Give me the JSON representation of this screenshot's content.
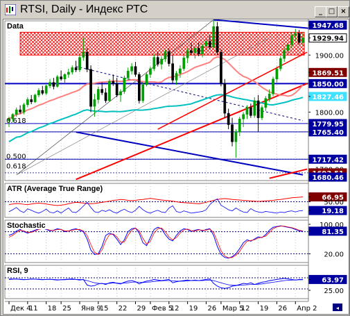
{
  "window": {
    "title": "RTSI, Daily - Индекс РТС",
    "buttons": {
      "minimize": "_",
      "maximize": "□",
      "close": "×"
    }
  },
  "colors": {
    "up_candle": "#00a000",
    "down_candle": "#000000",
    "resistance_zone": "#ff0000",
    "channel_blue": "#0000c0",
    "trend_red": "#ff0000",
    "ma_slow": "#00c0c0",
    "ma_fast": "#ff8080",
    "indicator_blue": "#0000ff",
    "indicator_red": "#ff0000",
    "tag_blue": "#0000a0",
    "tag_red": "#800000"
  },
  "chart_data": [
    {
      "type": "candlestick",
      "title": "Data",
      "ylim": [
        1680,
        1960
      ],
      "y_ticks": [
        1700.0,
        1800.0,
        1900.0
      ],
      "price_tags": [
        {
          "value": "1947.68",
          "color": "blue"
        },
        {
          "value": "1929.94",
          "color": "white"
        },
        {
          "value": "1900.00",
          "color": "none"
        },
        {
          "value": "1869.51",
          "color": "red"
        },
        {
          "value": "1850.00",
          "color": "blue"
        },
        {
          "value": "1827.46",
          "color": "cyan"
        },
        {
          "value": "1800.00",
          "color": "none"
        },
        {
          "value": "1779.95",
          "color": "blue"
        },
        {
          "value": "1765.40",
          "color": "blue"
        },
        {
          "value": "1717.42",
          "color": "blue"
        },
        {
          "value": "1700.00",
          "color": "none"
        },
        {
          "value": "1693.51",
          "color": "red"
        },
        {
          "value": "1680.46",
          "color": "blue"
        }
      ],
      "fib_labels": [
        "0.618",
        "0.500",
        "0.618"
      ],
      "horizontal_levels": [
        1850.0,
        1779.95,
        1765.4,
        1717.42
      ],
      "resistance_zone": [
        1900,
        1940
      ],
      "candles": [
        [
          1785,
          1792,
          1774,
          1788
        ],
        [
          1788,
          1798,
          1783,
          1796
        ],
        [
          1796,
          1808,
          1792,
          1804
        ],
        [
          1804,
          1812,
          1797,
          1800
        ],
        [
          1800,
          1816,
          1796,
          1813
        ],
        [
          1813,
          1826,
          1809,
          1822
        ],
        [
          1822,
          1830,
          1814,
          1818
        ],
        [
          1818,
          1832,
          1816,
          1830
        ],
        [
          1830,
          1842,
          1826,
          1838
        ],
        [
          1838,
          1846,
          1830,
          1833
        ],
        [
          1833,
          1848,
          1830,
          1846
        ],
        [
          1846,
          1858,
          1842,
          1852
        ],
        [
          1852,
          1860,
          1840,
          1845
        ],
        [
          1845,
          1865,
          1843,
          1862
        ],
        [
          1862,
          1873,
          1855,
          1858
        ],
        [
          1858,
          1868,
          1850,
          1866
        ],
        [
          1866,
          1876,
          1860,
          1870
        ],
        [
          1870,
          1882,
          1866,
          1878
        ],
        [
          1878,
          1890,
          1870,
          1874
        ],
        [
          1874,
          1900,
          1870,
          1896
        ],
        [
          1896,
          1930,
          1890,
          1905
        ],
        [
          1905,
          1912,
          1870,
          1875
        ],
        [
          1875,
          1882,
          1800,
          1810
        ],
        [
          1810,
          1832,
          1792,
          1822
        ],
        [
          1822,
          1845,
          1815,
          1840
        ],
        [
          1840,
          1852,
          1830,
          1834
        ],
        [
          1834,
          1842,
          1816,
          1820
        ],
        [
          1820,
          1858,
          1818,
          1854
        ],
        [
          1854,
          1866,
          1846,
          1850
        ],
        [
          1850,
          1860,
          1826,
          1830
        ],
        [
          1830,
          1840,
          1818,
          1836
        ],
        [
          1836,
          1864,
          1832,
          1860
        ],
        [
          1860,
          1878,
          1856,
          1872
        ],
        [
          1872,
          1886,
          1866,
          1880
        ],
        [
          1880,
          1888,
          1862,
          1866
        ],
        [
          1866,
          1870,
          1815,
          1820
        ],
        [
          1820,
          1852,
          1816,
          1848
        ],
        [
          1848,
          1870,
          1845,
          1866
        ],
        [
          1866,
          1880,
          1860,
          1876
        ],
        [
          1876,
          1902,
          1872,
          1896
        ],
        [
          1896,
          1906,
          1880,
          1884
        ],
        [
          1884,
          1898,
          1875,
          1893
        ],
        [
          1893,
          1910,
          1888,
          1906
        ],
        [
          1906,
          1912,
          1880,
          1885
        ],
        [
          1885,
          1900,
          1850,
          1856
        ],
        [
          1856,
          1872,
          1848,
          1868
        ],
        [
          1868,
          1882,
          1860,
          1876
        ],
        [
          1876,
          1900,
          1872,
          1895
        ],
        [
          1895,
          1912,
          1886,
          1908
        ],
        [
          1908,
          1922,
          1900,
          1904
        ],
        [
          1904,
          1916,
          1894,
          1912
        ],
        [
          1912,
          1922,
          1898,
          1902
        ],
        [
          1902,
          1920,
          1896,
          1916
        ],
        [
          1916,
          1930,
          1908,
          1924
        ],
        [
          1924,
          1935,
          1910,
          1914
        ],
        [
          1914,
          1960,
          1912,
          1950
        ],
        [
          1950,
          1958,
          1900,
          1905
        ],
        [
          1905,
          1910,
          1845,
          1850
        ],
        [
          1850,
          1858,
          1790,
          1798
        ],
        [
          1798,
          1806,
          1770,
          1778
        ],
        [
          1778,
          1790,
          1740,
          1748
        ],
        [
          1748,
          1770,
          1720,
          1765
        ],
        [
          1765,
          1792,
          1758,
          1788
        ],
        [
          1788,
          1800,
          1774,
          1796
        ],
        [
          1796,
          1812,
          1788,
          1808
        ],
        [
          1808,
          1815,
          1790,
          1794
        ],
        [
          1794,
          1826,
          1790,
          1820
        ],
        [
          1820,
          1830,
          1766,
          1790
        ],
        [
          1790,
          1812,
          1786,
          1808
        ],
        [
          1808,
          1828,
          1802,
          1824
        ],
        [
          1824,
          1840,
          1818,
          1832
        ],
        [
          1832,
          1862,
          1828,
          1858
        ],
        [
          1858,
          1880,
          1852,
          1876
        ],
        [
          1876,
          1898,
          1872,
          1894
        ],
        [
          1894,
          1912,
          1888,
          1908
        ],
        [
          1908,
          1922,
          1900,
          1918
        ],
        [
          1918,
          1940,
          1912,
          1934
        ],
        [
          1934,
          1946,
          1924,
          1938
        ],
        [
          1938,
          1944,
          1918,
          1922
        ],
        [
          1922,
          1940,
          1916,
          1930
        ]
      ]
    },
    {
      "type": "line",
      "title": "ATR (Average True Range)",
      "ylim": [
        0,
        100
      ],
      "y_ticks": [
        50.0
      ],
      "price_tags": [
        {
          "value": "66.95",
          "color": "red"
        },
        {
          "value": "50.00",
          "color": "none"
        },
        {
          "value": "19.18",
          "color": "blue"
        }
      ],
      "series": [
        {
          "color": "red",
          "values": [
            40,
            42,
            44,
            43,
            41,
            40,
            42,
            44,
            45,
            44,
            42,
            40,
            38,
            37,
            38,
            40,
            43,
            46,
            48,
            47,
            45,
            44,
            43,
            44,
            46,
            48,
            50,
            52,
            55,
            56,
            58,
            57,
            55,
            54,
            55,
            57,
            58,
            60,
            62,
            60,
            58,
            56,
            55,
            54,
            52,
            50,
            48,
            47,
            46,
            45,
            44,
            43,
            45,
            48,
            52,
            55,
            58,
            60,
            61,
            60,
            58,
            57,
            56,
            55,
            54,
            53,
            52,
            51,
            52,
            53,
            54,
            55,
            57,
            58,
            60,
            62,
            64,
            65,
            66,
            67
          ]
        },
        {
          "color": "blue",
          "values": [
            15,
            22,
            30,
            18,
            12,
            25,
            20,
            14,
            10,
            16,
            24,
            13,
            11,
            18,
            10,
            20,
            28,
            14,
            12,
            22,
            35,
            48,
            30,
            15,
            12,
            20,
            16,
            22,
            14,
            10,
            18,
            24,
            16,
            12,
            20,
            34,
            22,
            14,
            10,
            16,
            20,
            14,
            12,
            28,
            36,
            16,
            12,
            18,
            14,
            10,
            12,
            14,
            16,
            22,
            40,
            52,
            60,
            38,
            30,
            22,
            18,
            28,
            20,
            14,
            12,
            26,
            18,
            14,
            12,
            16,
            14,
            12,
            10,
            14,
            12,
            16,
            18,
            14,
            18,
            19
          ]
        }
      ]
    },
    {
      "type": "line",
      "title": "Stochastic",
      "ylim": [
        0,
        100
      ],
      "y_ticks": [
        100.0
      ],
      "price_tags": [
        {
          "value": "100.00",
          "color": "none"
        },
        {
          "value": "81.35",
          "color": "blue"
        },
        {
          "value": "20.00",
          "color": "none"
        }
      ],
      "series": [
        {
          "color": "blue",
          "values": [
            70,
            74,
            82,
            86,
            80,
            76,
            80,
            84,
            88,
            90,
            86,
            82,
            84,
            88,
            86,
            80,
            82,
            86,
            88,
            84,
            80,
            60,
            30,
            18,
            20,
            40,
            70,
            76,
            72,
            60,
            45,
            58,
            80,
            88,
            90,
            76,
            50,
            42,
            64,
            86,
            92,
            88,
            72,
            60,
            55,
            70,
            82,
            88,
            86,
            80,
            84,
            86,
            82,
            86,
            88,
            70,
            40,
            18,
            10,
            8,
            12,
            20,
            34,
            50,
            58,
            54,
            60,
            66,
            64,
            72,
            84,
            92,
            94,
            96,
            94,
            92,
            90,
            86,
            82,
            81
          ]
        },
        {
          "color": "red",
          "values": [
            65,
            70,
            78,
            84,
            82,
            78,
            78,
            82,
            86,
            88,
            88,
            84,
            83,
            86,
            86,
            82,
            82,
            84,
            86,
            86,
            82,
            70,
            45,
            24,
            18,
            30,
            55,
            72,
            74,
            66,
            52,
            52,
            70,
            84,
            90,
            82,
            62,
            46,
            54,
            76,
            88,
            90,
            80,
            66,
            58,
            64,
            76,
            85,
            87,
            83,
            82,
            85,
            84,
            84,
            87,
            78,
            54,
            28,
            14,
            9,
            10,
            16,
            26,
            42,
            54,
            56,
            58,
            63,
            65,
            68,
            78,
            88,
            93,
            95,
            95,
            93,
            91,
            88,
            84,
            82
          ]
        }
      ]
    },
    {
      "type": "line",
      "title": "RSI, 9",
      "ylim": [
        0,
        100
      ],
      "y_ticks": [],
      "price_tags": [
        {
          "value": "63.97",
          "color": "blue"
        },
        {
          "value": "25.00",
          "color": "none"
        }
      ],
      "series": [
        {
          "color": "blue",
          "values": [
            64,
            65,
            66,
            64,
            63,
            64,
            66,
            65,
            64,
            63,
            64,
            65,
            63,
            62,
            63,
            64,
            65,
            66,
            64,
            62,
            64,
            44,
            40,
            42,
            48,
            50,
            46,
            52,
            54,
            50,
            48,
            54,
            58,
            60,
            56,
            48,
            54,
            58,
            60,
            64,
            62,
            60,
            62,
            64,
            52,
            56,
            58,
            60,
            62,
            60,
            62,
            60,
            62,
            64,
            66,
            50,
            40,
            34,
            32,
            34,
            40,
            42,
            46,
            50,
            48,
            52,
            46,
            50,
            54,
            56,
            60,
            62,
            64,
            66,
            68,
            66,
            64,
            62,
            64,
            64
          ]
        },
        {
          "color": "blue",
          "values": [
            66,
            66,
            65,
            65,
            64,
            64,
            65,
            65,
            65,
            64,
            64,
            64,
            64,
            63,
            63,
            63,
            64,
            64,
            64,
            64,
            63,
            60,
            56,
            52,
            50,
            49,
            49,
            50,
            51,
            51,
            50,
            51,
            52,
            54,
            55,
            54,
            53,
            54,
            55,
            57,
            58,
            59,
            60,
            60,
            59,
            58,
            58,
            58,
            59,
            60,
            60,
            60,
            60,
            61,
            62,
            60,
            56,
            52,
            48,
            45,
            43,
            43,
            43,
            44,
            45,
            46,
            46,
            47,
            48,
            50,
            52,
            54,
            56,
            58,
            60,
            61,
            62,
            62,
            63,
            63
          ]
        }
      ]
    }
  ],
  "x_labels": [
    "Дек 4",
    "11",
    "18",
    "25",
    "Янв 9",
    "15",
    "22",
    "29",
    "Фев 5",
    "12",
    "19",
    "26",
    "Мар 5",
    "12",
    "19",
    "26",
    "Апр 2"
  ]
}
